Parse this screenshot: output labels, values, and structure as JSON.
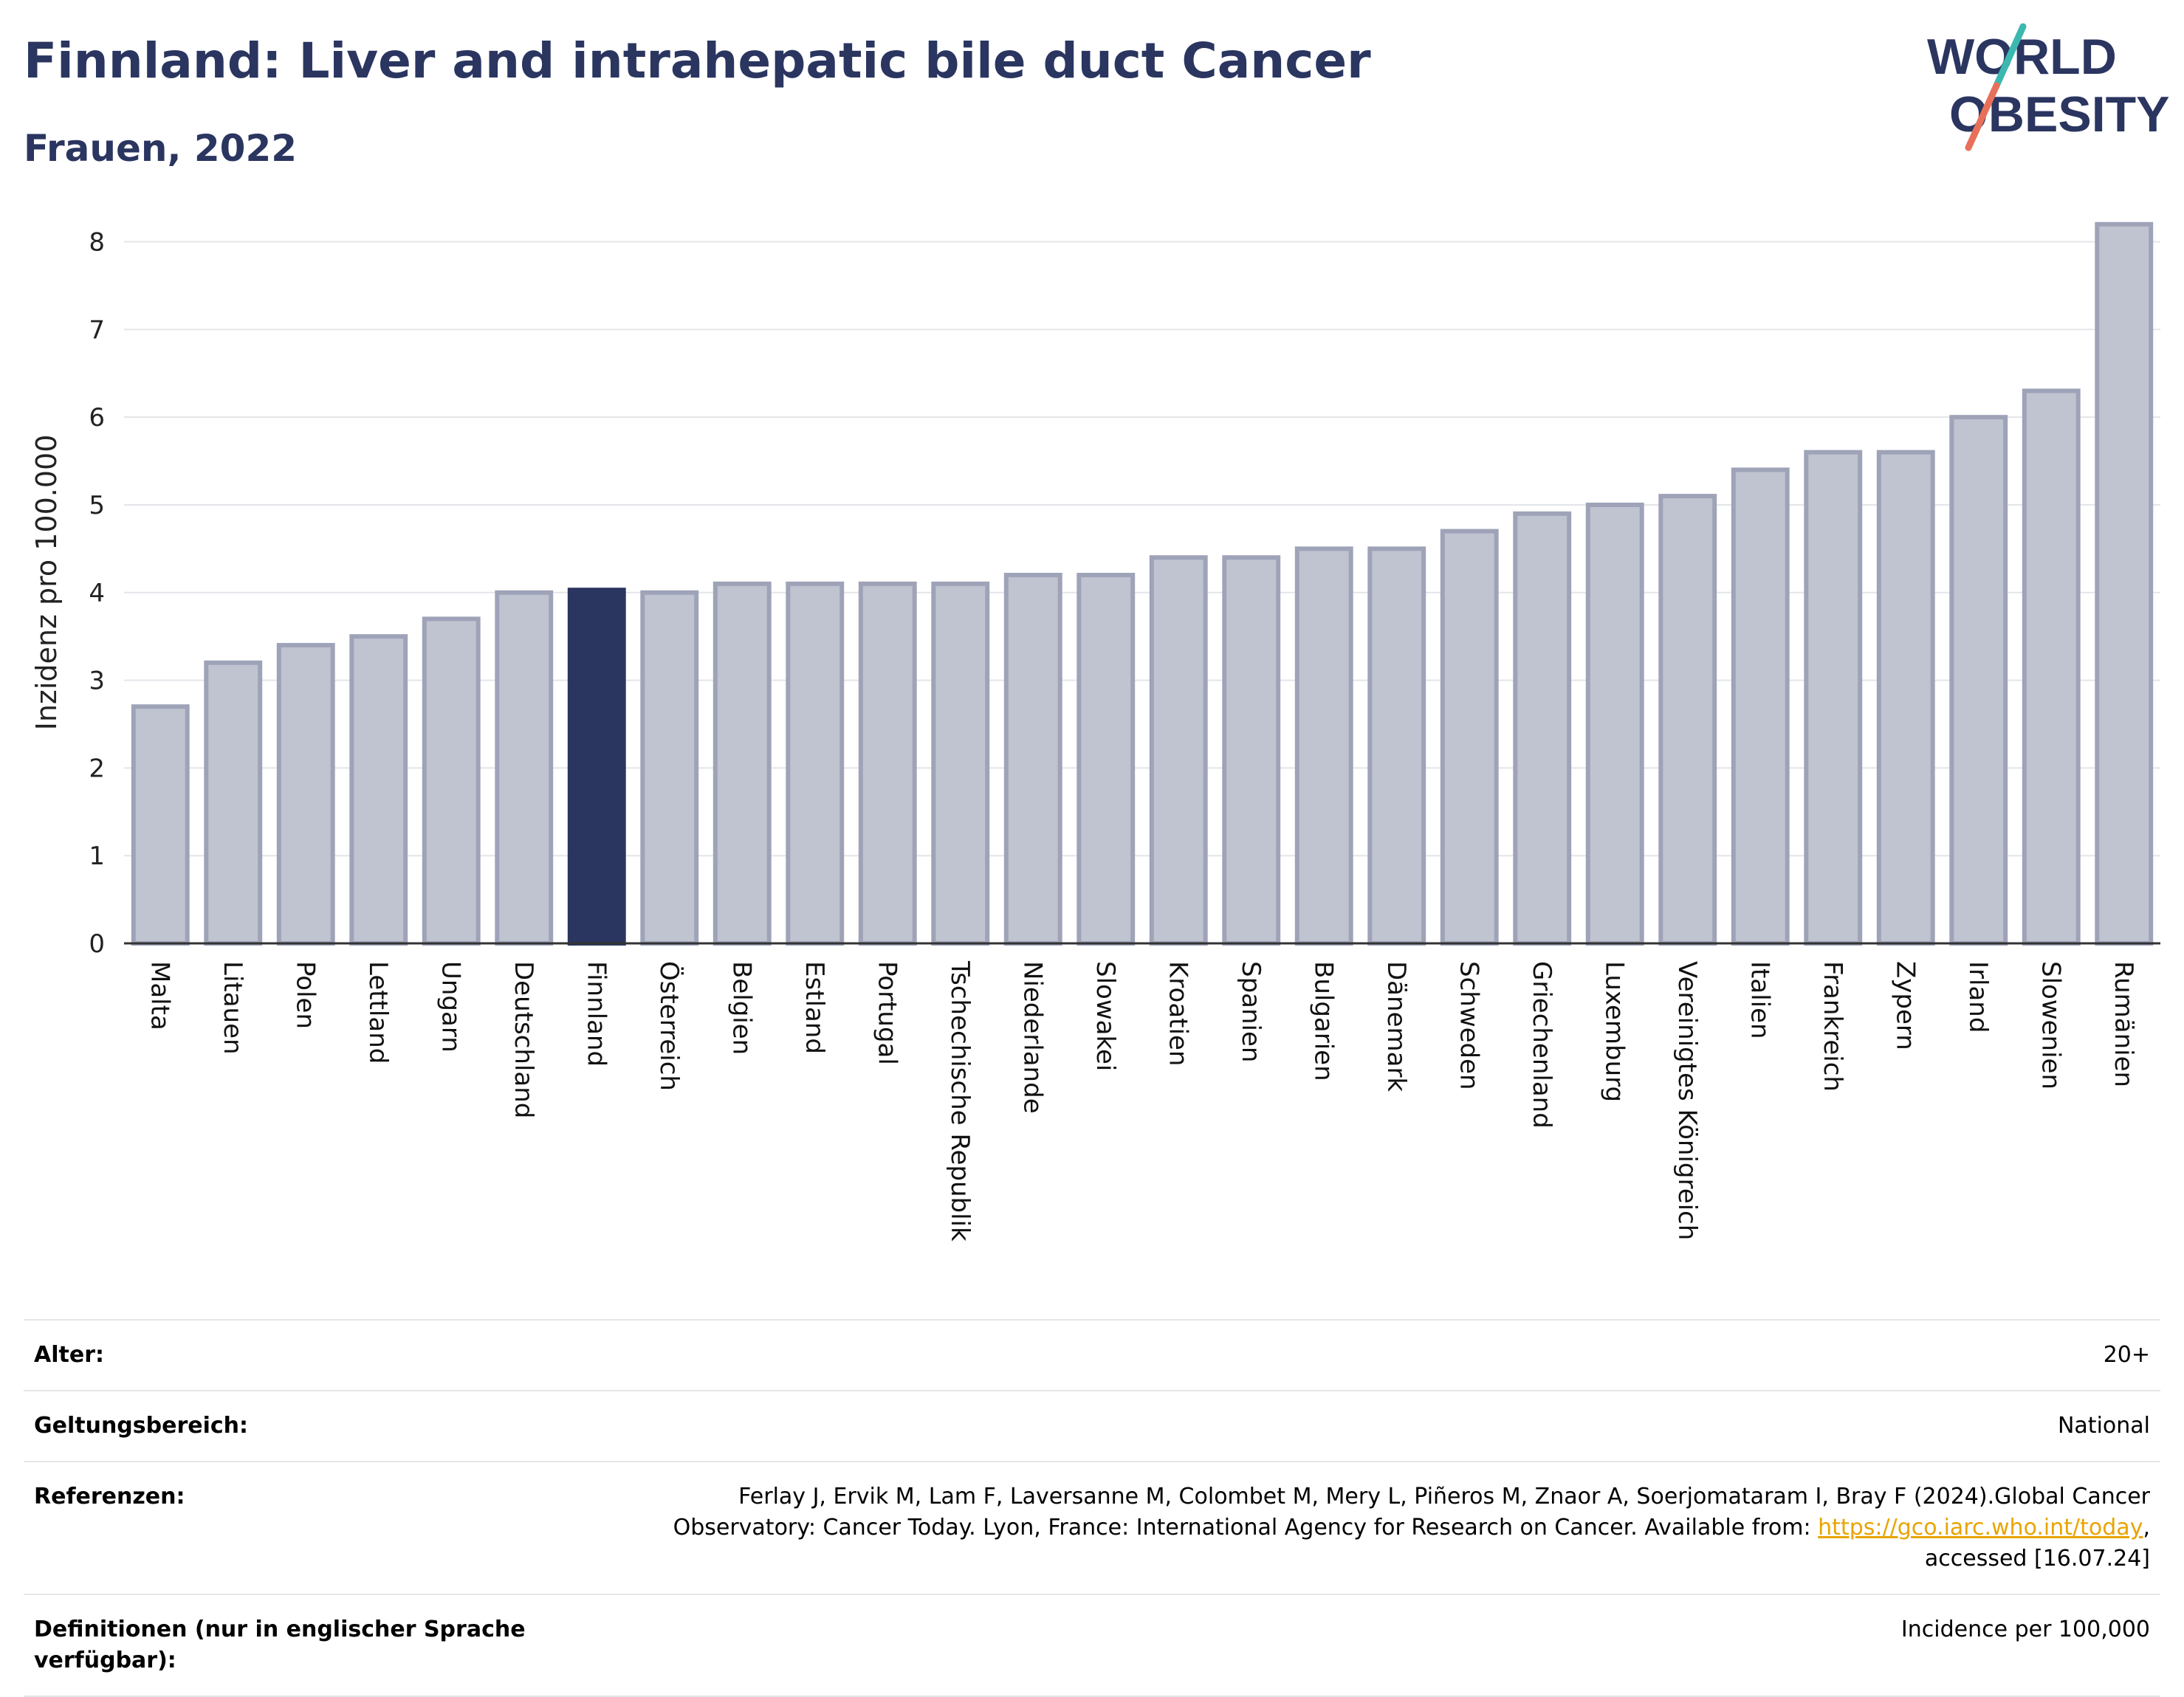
{
  "header": {
    "title": "Finnland: Liver and intrahepatic bile duct Cancer",
    "subtitle": "Frauen, 2022"
  },
  "logo": {
    "line1": "WORLD",
    "line2": "OBESITY",
    "colors": [
      "#2a3560",
      "#3bb8b0",
      "#e8705a"
    ]
  },
  "chart_data": {
    "type": "bar",
    "ylabel": "Inzidenz pro 100.000",
    "ylim": [
      0,
      8.4
    ],
    "yticks": [
      0,
      1,
      2,
      3,
      4,
      5,
      6,
      7,
      8
    ],
    "grid": true,
    "highlight": "Finnland",
    "colors": {
      "bar": "#c0c3d0",
      "bar_edge": "#9ea3b8",
      "highlight": "#2a3560"
    },
    "categories": [
      "Malta",
      "Litauen",
      "Polen",
      "Lettland",
      "Ungarn",
      "Deutschland",
      "Finnland",
      "Österreich",
      "Belgien",
      "Estland",
      "Portugal",
      "Tschechische Republik",
      "Niederlande",
      "Slowakei",
      "Kroatien",
      "Spanien",
      "Bulgarien",
      "Dänemark",
      "Schweden",
      "Griechenland",
      "Luxemburg",
      "Vereinigtes Königreich",
      "Italien",
      "Frankreich",
      "Zypern",
      "Irland",
      "Slowenien",
      "Rumänien"
    ],
    "values": [
      2.7,
      3.2,
      3.4,
      3.5,
      3.7,
      4.0,
      4.03,
      4.0,
      4.1,
      4.1,
      4.1,
      4.1,
      4.2,
      4.2,
      4.4,
      4.4,
      4.5,
      4.5,
      4.7,
      4.9,
      5.0,
      5.1,
      5.4,
      5.6,
      5.6,
      6.0,
      6.3,
      8.2
    ]
  },
  "meta": {
    "age_label": "Alter:",
    "age_value": "20+",
    "scope_label": "Geltungsbereich:",
    "scope_value": "National",
    "ref_label": "Referenzen:",
    "ref_text_1": "Ferlay J, Ervik M, Lam F, Laversanne M, Colombet M, Mery L, Piñeros M, Znaor A, Soerjomataram I, Bray F (2024).Global Cancer Observatory: Cancer Today. Lyon, France: International Agency for Research on Cancer. Available from: ",
    "ref_link": "https://gco.iarc.who.int/today",
    "ref_text_2": ", accessed [16.07.24]",
    "def_label": "Definitionen (nur in englischer Sprache verfügbar):",
    "def_value": "Incidence per 100,000"
  }
}
